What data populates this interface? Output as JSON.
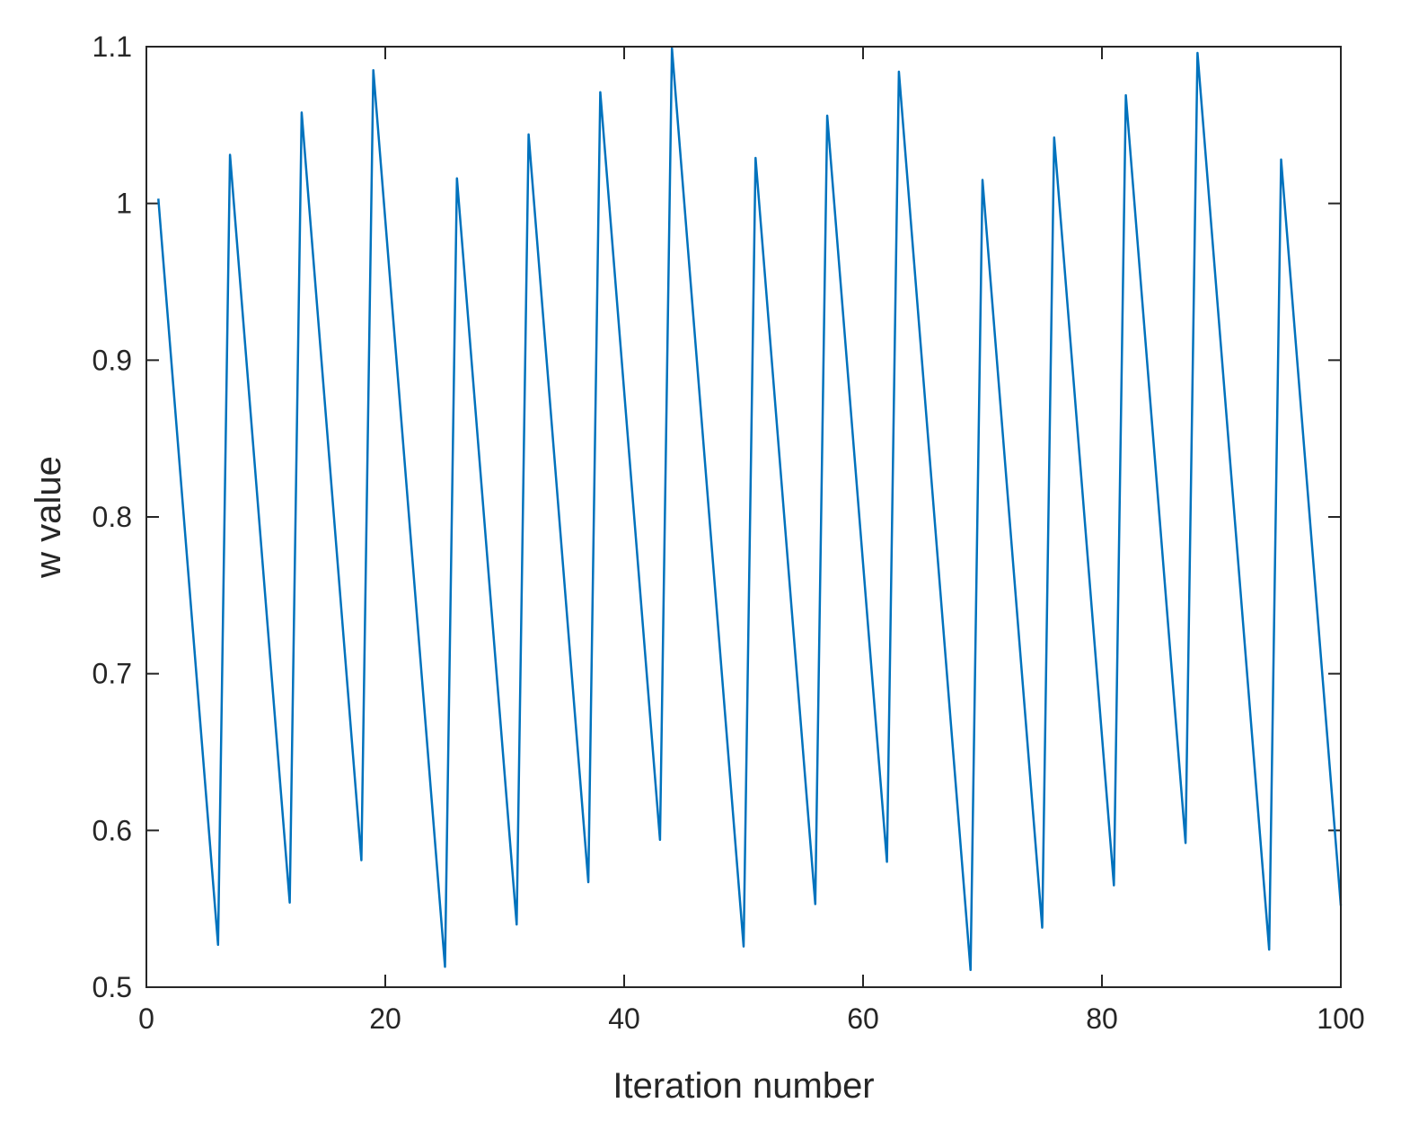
{
  "chart_data": {
    "type": "line",
    "title": "",
    "xlabel": "Iteration number",
    "ylabel": "w value",
    "xlim": [
      0,
      100
    ],
    "ylim": [
      0.5,
      1.1
    ],
    "xticks": [
      0,
      20,
      40,
      60,
      80,
      100
    ],
    "xtick_labels": [
      "0",
      "20",
      "40",
      "60",
      "80",
      "100"
    ],
    "yticks": [
      0.5,
      0.6,
      0.7,
      0.8,
      0.9,
      1.0,
      1.1
    ],
    "ytick_labels": [
      "0.5",
      "0.6",
      "0.7",
      "0.8",
      "0.9",
      "1",
      "1.1"
    ],
    "grid": false,
    "box": true,
    "line_color": "#0072BD",
    "axis_color": "#262626",
    "series": [
      {
        "x": [
          1,
          6,
          7,
          12,
          13,
          18,
          19,
          25,
          26,
          31,
          32,
          37,
          38,
          43,
          44,
          50,
          51,
          56,
          57,
          62,
          63,
          69,
          70,
          75,
          76,
          81,
          82,
          87,
          88,
          94,
          95,
          100
        ],
        "y": [
          1.003,
          0.527,
          1.031,
          0.554,
          1.058,
          0.581,
          1.085,
          0.513,
          1.016,
          0.54,
          1.044,
          0.567,
          1.071,
          0.594,
          1.099,
          0.526,
          1.029,
          0.553,
          1.056,
          0.58,
          1.084,
          0.511,
          1.015,
          0.538,
          1.042,
          0.565,
          1.069,
          0.592,
          1.096,
          0.524,
          1.028,
          0.552
        ]
      }
    ]
  }
}
